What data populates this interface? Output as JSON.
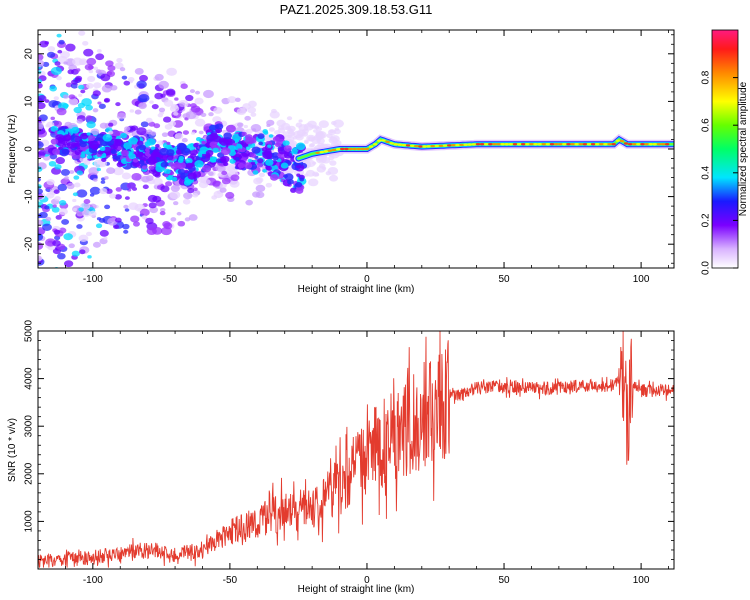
{
  "title": "PAZ1.2025.309.18.53.G11",
  "chart_data": [
    {
      "type": "heatmap",
      "title": "PAZ1.2025.309.18.53.G11",
      "xlabel": "Height of straight line (km)",
      "ylabel": "Frequency (Hz)",
      "xlim": [
        -120,
        112
      ],
      "ylim": [
        -25,
        25
      ],
      "xticks": [
        -100,
        -50,
        0,
        50,
        100
      ],
      "yticks": [
        -20,
        -10,
        0,
        10,
        20
      ],
      "colorbar": {
        "label": "Normalized spectral amplitude",
        "range": [
          0,
          1
        ],
        "ticks": [
          "0.0",
          "0.2",
          "0.4",
          "0.6",
          "0.8"
        ]
      },
      "ridge": {
        "description": "dominant frequency track",
        "x": [
          -110,
          -95,
          -85,
          -75,
          -65,
          -55,
          -45,
          -35,
          -25,
          -20,
          -10,
          0,
          3,
          5,
          10,
          20,
          40,
          60,
          80,
          90,
          92,
          95,
          100,
          112
        ],
        "y": [
          2,
          1,
          0,
          -1,
          -2,
          3,
          2,
          1,
          -2,
          -1,
          0,
          0,
          1,
          2,
          1,
          0.5,
          1,
          1,
          1,
          1,
          2,
          1,
          1,
          1
        ]
      }
    },
    {
      "type": "line",
      "xlabel": "Height of straight line (km)",
      "ylabel": "SNR (10 * v/v)",
      "xlim": [
        -120,
        112
      ],
      "ylim": [
        0,
        5000
      ],
      "xticks": [
        -100,
        -50,
        0,
        50,
        100
      ],
      "yticks": [
        1000,
        2000,
        3000,
        4000,
        5000
      ],
      "series": [
        {
          "name": "SNR",
          "color": "#e33b2e",
          "x": [
            -120,
            -110,
            -100,
            -90,
            -80,
            -70,
            -60,
            -50,
            -40,
            -30,
            -20,
            -10,
            0,
            10,
            20,
            30,
            40,
            50,
            60,
            70,
            80,
            90,
            93,
            95,
            97,
            100,
            112
          ],
          "y": [
            150,
            200,
            250,
            300,
            400,
            300,
            400,
            800,
            1000,
            1200,
            1300,
            1800,
            2400,
            2800,
            3200,
            3600,
            3800,
            3850,
            3800,
            3800,
            3850,
            3850,
            4300,
            3000,
            3900,
            3750,
            3750
          ]
        }
      ]
    }
  ]
}
